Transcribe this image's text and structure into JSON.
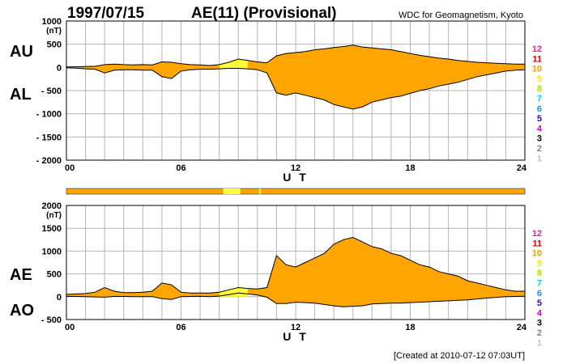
{
  "header": {
    "date": "1997/07/15",
    "title": "AE(11) (Provisional)",
    "source": "WDC for Geomagnetism, Kyoto"
  },
  "footer": {
    "created": "[Created at 2010-07-12 07:03UT]"
  },
  "colors": {
    "fill": "#ffa500",
    "highlight": "#ffff33",
    "grid": "#b4b4b4",
    "outline": "#000000"
  },
  "station_scale": {
    "labels": [
      "12",
      "11",
      "10",
      "9",
      "8",
      "7",
      "6",
      "5",
      "4",
      "3",
      "2",
      "1"
    ],
    "colors": [
      "#ff1e8c",
      "#e00000",
      "#ff9900",
      "#ffe600",
      "#a8e000",
      "#00d8d8",
      "#1e90ff",
      "#3300cc",
      "#cc00cc",
      "#000000",
      "#808080",
      "#c0c0c0"
    ]
  },
  "chart_data": [
    {
      "type": "area",
      "name": "upper",
      "label_top": "AU",
      "label_bottom": "AL",
      "ylabel": "(nT)",
      "ylim": [
        -2000,
        1000
      ],
      "yticks": [
        1000,
        500,
        0,
        -500,
        -1000,
        -1500,
        -2000
      ],
      "yticklabels": [
        "1000",
        "500",
        "0",
        "- 500",
        "- 1000",
        "- 1500",
        "- 2000"
      ],
      "xlim": [
        0,
        24
      ],
      "xticks": [
        0,
        6,
        12,
        18,
        24
      ],
      "xticklabels": [
        "00",
        "06",
        "12",
        "18",
        "24"
      ],
      "xlabel": "U T",
      "grid": true,
      "x": [
        0,
        0.5,
        1,
        1.5,
        2,
        2.5,
        3,
        3.5,
        4,
        4.5,
        5,
        5.5,
        6,
        6.5,
        7,
        7.5,
        8,
        8.5,
        9,
        9.5,
        10,
        10.5,
        11,
        11.5,
        12,
        12.5,
        13,
        13.5,
        14,
        14.5,
        15,
        15.5,
        16,
        16.5,
        17,
        17.5,
        18,
        18.5,
        19,
        19.5,
        20,
        20.5,
        21,
        21.5,
        22,
        22.5,
        23,
        23.5,
        24
      ],
      "series": [
        {
          "name": "AU",
          "values": [
            10,
            15,
            20,
            25,
            60,
            70,
            60,
            55,
            60,
            55,
            120,
            110,
            80,
            60,
            55,
            40,
            60,
            110,
            180,
            150,
            120,
            100,
            250,
            300,
            320,
            340,
            380,
            400,
            430,
            450,
            480,
            440,
            420,
            400,
            380,
            340,
            300,
            260,
            230,
            200,
            180,
            150,
            130,
            110,
            100,
            90,
            80,
            70,
            70
          ]
        },
        {
          "name": "AL",
          "values": [
            -10,
            -15,
            -30,
            -40,
            -120,
            -60,
            -50,
            -50,
            -60,
            -60,
            -200,
            -240,
            -80,
            -50,
            -40,
            -40,
            -30,
            -20,
            -20,
            -30,
            -50,
            -120,
            -550,
            -600,
            -550,
            -600,
            -650,
            -700,
            -800,
            -850,
            -900,
            -850,
            -750,
            -700,
            -650,
            -620,
            -560,
            -500,
            -460,
            -400,
            -360,
            -320,
            -260,
            -200,
            -160,
            -120,
            -80,
            -60,
            -50
          ]
        }
      ]
    },
    {
      "type": "area",
      "name": "lower",
      "label_top": "AE",
      "label_bottom": "AO",
      "ylabel": "(nT)",
      "ylim": [
        -500,
        2000
      ],
      "yticks": [
        2000,
        1500,
        1000,
        500,
        0,
        -500
      ],
      "yticklabels": [
        "2000",
        "1500",
        "1000",
        "500",
        "0",
        "- 500"
      ],
      "xlim": [
        0,
        24
      ],
      "xticks": [
        0,
        6,
        12,
        18,
        24
      ],
      "xticklabels": [
        "00",
        "06",
        "12",
        "18",
        "24"
      ],
      "xlabel": "U T",
      "grid": true,
      "x": [
        0,
        0.5,
        1,
        1.5,
        2,
        2.5,
        3,
        3.5,
        4,
        4.5,
        5,
        5.5,
        6,
        6.5,
        7,
        7.5,
        8,
        8.5,
        9,
        9.5,
        10,
        10.5,
        11,
        11.5,
        12,
        12.5,
        13,
        13.5,
        14,
        14.5,
        15,
        15.5,
        16,
        16.5,
        17,
        17.5,
        18,
        18.5,
        19,
        19.5,
        20,
        20.5,
        21,
        21.5,
        22,
        22.5,
        23,
        23.5,
        24
      ],
      "series": [
        {
          "name": "AE",
          "values": [
            50,
            60,
            70,
            100,
            200,
            120,
            90,
            90,
            100,
            120,
            300,
            260,
            100,
            80,
            80,
            80,
            100,
            150,
            200,
            180,
            170,
            200,
            900,
            700,
            650,
            750,
            850,
            950,
            1150,
            1250,
            1300,
            1200,
            1100,
            1050,
            950,
            900,
            800,
            700,
            650,
            550,
            500,
            450,
            350,
            300,
            250,
            200,
            150,
            120,
            120
          ]
        },
        {
          "name": "AO",
          "values": [
            5,
            5,
            0,
            -5,
            -10,
            5,
            5,
            2,
            0,
            0,
            -40,
            -60,
            0,
            5,
            8,
            0,
            15,
            45,
            80,
            60,
            35,
            -10,
            -150,
            -150,
            -120,
            -130,
            -140,
            -170,
            -200,
            -220,
            -210,
            -200,
            -160,
            -150,
            -140,
            -140,
            -130,
            -120,
            -110,
            -100,
            -90,
            -80,
            -70,
            -50,
            -30,
            -15,
            0,
            5,
            10
          ]
        }
      ]
    }
  ]
}
